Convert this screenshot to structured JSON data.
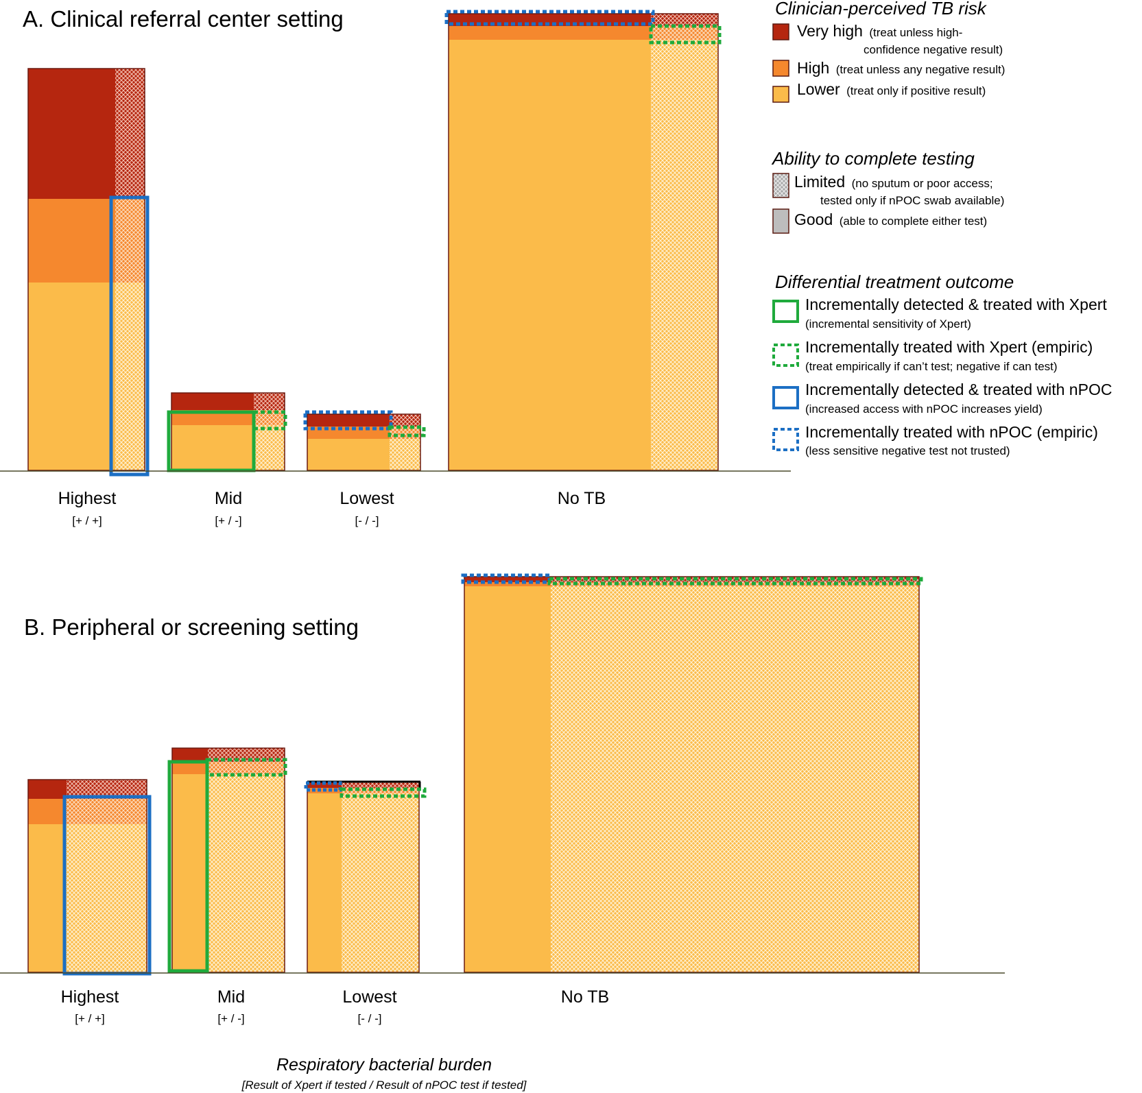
{
  "colors": {
    "very_high": "#b5260f",
    "high": "#f5882e",
    "lower": "#fbbb4a",
    "outline": "#6b1a10",
    "axis": "#4a4a2a",
    "xpert": "#1faa3c",
    "npoc": "#1c6fc4"
  },
  "panels": {
    "a": {
      "title": "A. Clinical referral center setting",
      "categories": [
        {
          "label": "Highest",
          "sub": "[+ / +]"
        },
        {
          "label": "Mid",
          "sub": "[+ / -]"
        },
        {
          "label": "Lowest",
          "sub": "[- / -]"
        },
        {
          "label": "No TB",
          "sub": ""
        }
      ]
    },
    "b": {
      "title": "B. Peripheral or screening setting",
      "categories": [
        {
          "label": "Highest",
          "sub": "[+ / +]"
        },
        {
          "label": "Mid",
          "sub": "[+ / -]"
        },
        {
          "label": "Lowest",
          "sub": "[- / -]"
        },
        {
          "label": "No TB",
          "sub": ""
        }
      ]
    }
  },
  "x_axis": {
    "title": "Respiratory bacterial burden",
    "subtitle": "[Result of Xpert if tested / Result of nPOC test if tested]"
  },
  "legend": {
    "risk": {
      "heading": "Clinician-perceived TB risk",
      "very_high": {
        "main": "Very high",
        "note1": "(treat unless high-",
        "note2": "confidence negative result)"
      },
      "high": {
        "main": "High",
        "note": "(treat unless any negative result)"
      },
      "lower": {
        "main": "Lower",
        "note": "(treat only if positive result)"
      }
    },
    "ability": {
      "heading": "Ability to complete testing",
      "limited": {
        "main": "Limited",
        "note1": "(no sputum or poor access;",
        "note2": "tested only if nPOC swab available)"
      },
      "good": {
        "main": "Good",
        "note": "(able to complete either test)"
      }
    },
    "outcome": {
      "heading": "Differential treatment outcome",
      "items": [
        {
          "main": "Incrementally detected & treated with Xpert",
          "note": "(incremental sensitivity of Xpert)"
        },
        {
          "main": "Incrementally treated with Xpert (empiric)",
          "note": "(treat empirically if can’t test; negative if can test)"
        },
        {
          "main": "Incrementally detected & treated with nPOC",
          "note": "(increased access with nPOC increases yield)"
        },
        {
          "main": "Incrementally treated with nPOC (empiric)",
          "note": "(less sensitive negative test not trusted)"
        }
      ]
    }
  }
}
